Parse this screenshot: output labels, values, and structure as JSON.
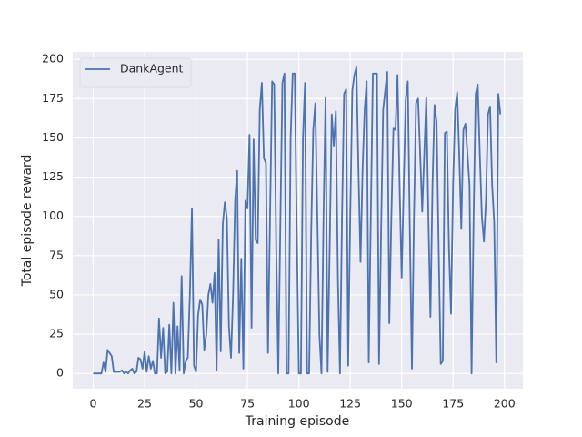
{
  "chart_data": {
    "type": "line",
    "x_label": "Training episode",
    "y_label": "Total episode reward",
    "x": [
      0,
      1,
      2,
      3,
      4,
      5,
      6,
      7,
      8,
      9,
      10,
      11,
      12,
      13,
      14,
      15,
      16,
      17,
      18,
      19,
      20,
      21,
      22,
      23,
      24,
      25,
      26,
      27,
      28,
      29,
      30,
      31,
      32,
      33,
      34,
      35,
      36,
      37,
      38,
      39,
      40,
      41,
      42,
      43,
      44,
      45,
      46,
      47,
      48,
      49,
      50,
      51,
      52,
      53,
      54,
      55,
      56,
      57,
      58,
      59,
      60,
      61,
      62,
      63,
      64,
      65,
      66,
      67,
      68,
      69,
      70,
      71,
      72,
      73,
      74,
      75,
      76,
      77,
      78,
      79,
      80,
      81,
      82,
      83,
      84,
      85,
      86,
      87,
      88,
      89,
      90,
      91,
      92,
      93,
      94,
      95,
      96,
      97,
      98,
      99,
      100,
      101,
      102,
      103,
      104,
      105,
      106,
      107,
      108,
      109,
      110,
      111,
      112,
      113,
      114,
      115,
      116,
      117,
      118,
      119,
      120,
      121,
      122,
      123,
      124,
      125,
      126,
      127,
      128,
      129,
      130,
      131,
      132,
      133,
      134,
      135,
      136,
      137,
      138,
      139,
      140,
      141,
      142,
      143,
      144,
      145,
      146,
      147,
      148,
      149,
      150,
      151,
      152,
      153,
      154,
      155,
      156,
      157,
      158,
      159,
      160,
      161,
      162,
      163,
      164,
      165,
      166,
      167,
      168,
      169,
      170,
      171,
      172,
      173,
      174,
      175,
      176,
      177,
      178,
      179,
      180,
      181,
      182,
      183,
      184,
      185,
      186,
      187,
      188,
      189,
      190,
      191,
      192,
      193,
      194,
      195,
      196,
      197,
      198
    ],
    "series": [
      {
        "name": "DankAgent",
        "color": "#4c72b0",
        "values": [
          0,
          0,
          0,
          0,
          0,
          7,
          1,
          15,
          13,
          11,
          1,
          1,
          1,
          1,
          2,
          0,
          1,
          0,
          2,
          3,
          0,
          1,
          10,
          9,
          3,
          14,
          1,
          11,
          3,
          8,
          0,
          0,
          35,
          10,
          29,
          0,
          1,
          31,
          0,
          45,
          0,
          30,
          2,
          62,
          0,
          8,
          10,
          50,
          105,
          5,
          1,
          37,
          47,
          44,
          15,
          25,
          50,
          57,
          45,
          64,
          2,
          85,
          14,
          95,
          109,
          99,
          30,
          10,
          50,
          110,
          129,
          13,
          73,
          3,
          110,
          105,
          152,
          29,
          149,
          85,
          83,
          168,
          185,
          137,
          134,
          13,
          100,
          186,
          184,
          80,
          0,
          95,
          185,
          191,
          0,
          0,
          150,
          191,
          191,
          90,
          0,
          0,
          150,
          185,
          0,
          0,
          90,
          155,
          172,
          100,
          25,
          0,
          100,
          176,
          1,
          80,
          165,
          145,
          167,
          60,
          0,
          100,
          178,
          181,
          5,
          100,
          180,
          190,
          195,
          130,
          71,
          130,
          168,
          186,
          7,
          100,
          191,
          191,
          191,
          6,
          90,
          168,
          180,
          192,
          32,
          100,
          156,
          155,
          190,
          120,
          61,
          120,
          175,
          186,
          90,
          3,
          100,
          172,
          175,
          140,
          103,
          140,
          176,
          100,
          36,
          120,
          171,
          160,
          80,
          6,
          8,
          153,
          154,
          80,
          38,
          120,
          168,
          179,
          140,
          92,
          155,
          159,
          140,
          120,
          0,
          100,
          178,
          184,
          140,
          100,
          84,
          110,
          165,
          170,
          120,
          96,
          7,
          178,
          165
        ]
      }
    ],
    "xlim": [
      -9.95,
      208.95
    ],
    "ylim": [
      -9.75,
      204.75
    ],
    "xticks": [
      0,
      25,
      50,
      75,
      100,
      125,
      150,
      175,
      200
    ],
    "yticks": [
      0,
      25,
      50,
      75,
      100,
      125,
      150,
      175,
      200
    ],
    "grid": true,
    "legend": "upper left"
  }
}
